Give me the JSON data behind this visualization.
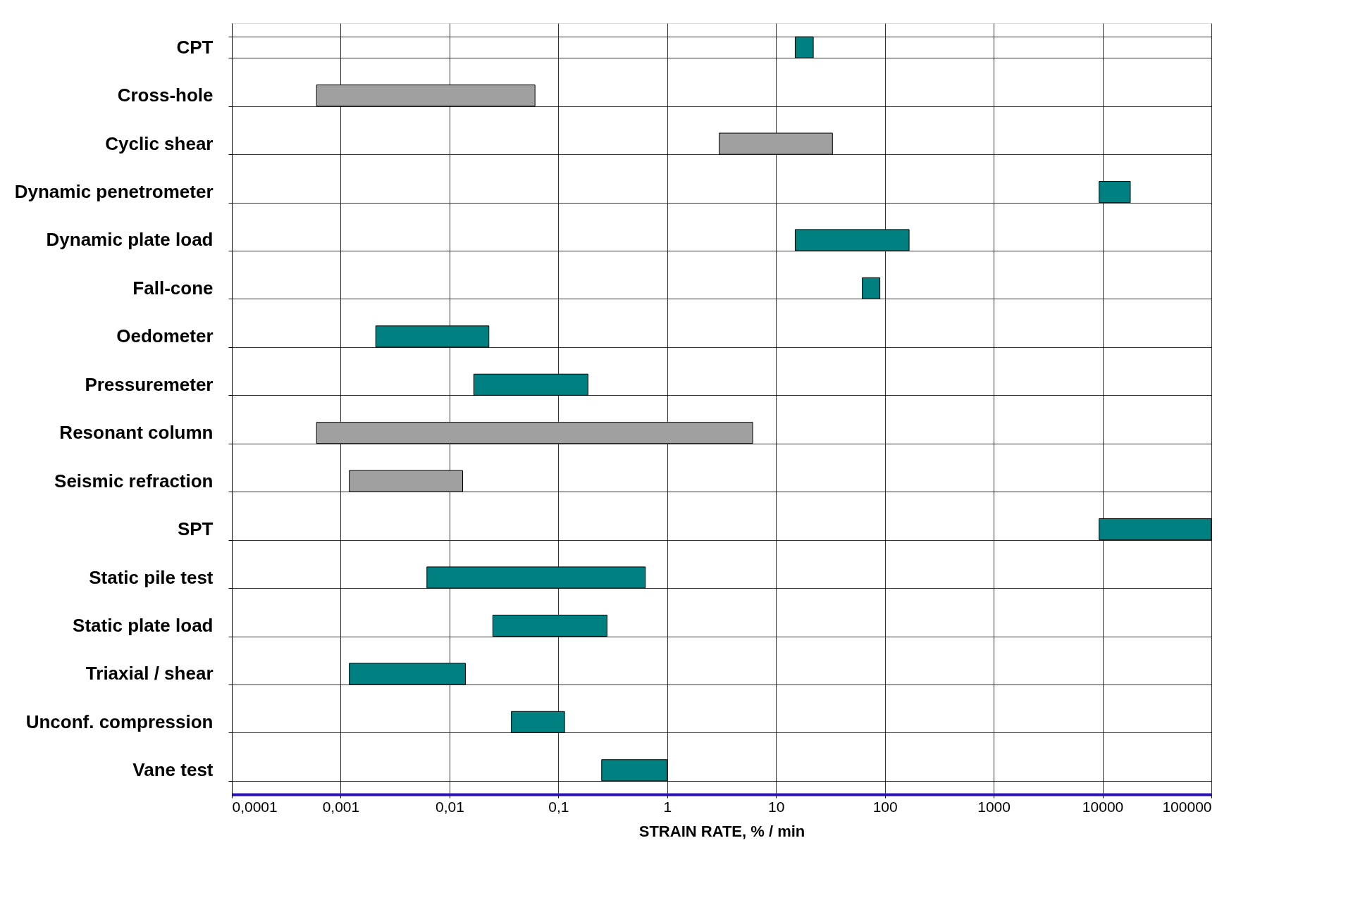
{
  "chart_data": {
    "type": "bar",
    "orientation": "horizontal",
    "xlabel": "STRAIN RATE, % / min",
    "log": "x",
    "grid": true,
    "categories": [
      "CPT",
      "Cross-hole",
      "Cyclic shear",
      "Dynamic penetrometer",
      "Dynamic plate load",
      "Fall-cone",
      "Oedometer",
      "Pressuremeter",
      "Resonant column",
      "Seismic refraction",
      "SPT",
      "Static pile test",
      "Static plate load",
      "Triaxial / shear",
      "Unconf. compression",
      "Vane test"
    ],
    "base": [
      15,
      0.0006,
      3,
      9300,
      15,
      62,
      0.0021,
      0.0167,
      0.0006,
      0.0012,
      9300,
      0.0062,
      0.025,
      0.0012,
      0.037,
      0.25
    ],
    "values": [
      7,
      0.0604,
      30,
      8700,
      152,
      28,
      0.0209,
      0.1703,
      6.0994,
      0.012,
      90700,
      0.6238,
      0.255,
      0.0128,
      0.077,
      0.75
    ],
    "colors": [
      "#008080",
      "#a0a0a0",
      "#a0a0a0",
      "#008080",
      "#008080",
      "#008080",
      "#008080",
      "#008080",
      "#a0a0a0",
      "#a0a0a0",
      "#008080",
      "#008080",
      "#008080",
      "#008080",
      "#008080",
      "#008080"
    ],
    "xlim": [
      0.0001,
      100000
    ],
    "xticks": [
      {
        "value": 0.0001,
        "label": "0,0001"
      },
      {
        "value": 0.001,
        "label": "0,001"
      },
      {
        "value": 0.01,
        "label": "0,01"
      },
      {
        "value": 0.1,
        "label": "0,1"
      },
      1,
      10,
      100,
      1000,
      10000,
      100000
    ]
  }
}
